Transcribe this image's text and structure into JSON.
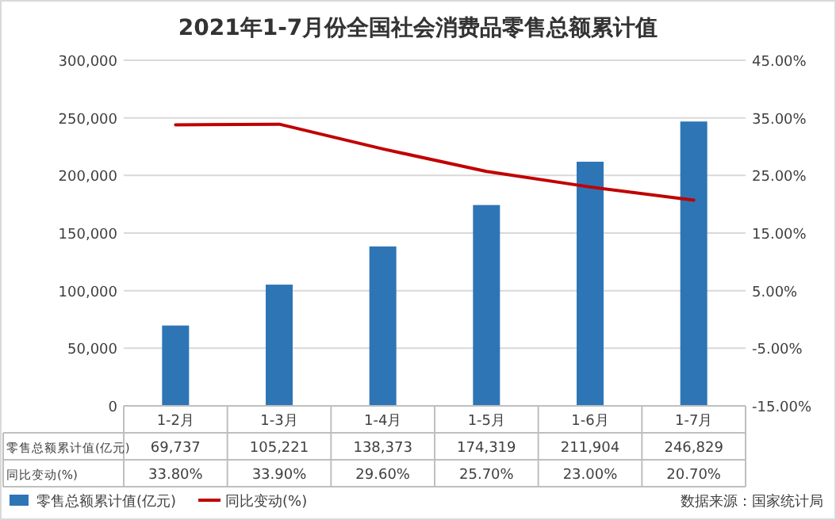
{
  "chart_data": {
    "type": "bar",
    "title": "2021年1-7月份全国社会消费品零售总额累计值",
    "categories": [
      "1-2月",
      "1-3月",
      "1-4月",
      "1-5月",
      "1-6月",
      "1-7月"
    ],
    "series": [
      {
        "name": "零售总额累计值(亿元)",
        "color": "#2e75b6",
        "values": [
          69737,
          105221,
          138373,
          174319,
          211904,
          246829
        ],
        "value_labels": [
          "69,737",
          "105,221",
          "138,373",
          "174,319",
          "211,904",
          "246,829"
        ]
      },
      {
        "name": "同比变动(%)",
        "type": "line",
        "axis": "y2",
        "color": "#c00000",
        "values": [
          33.8,
          33.9,
          29.6,
          25.7,
          23.0,
          20.7
        ],
        "value_labels": [
          "33.80%",
          "33.90%",
          "29.60%",
          "25.70%",
          "23.00%",
          "20.70%"
        ]
      }
    ],
    "ylim": [
      0,
      300000
    ],
    "yticks": [
      {
        "value": 0,
        "label": "0"
      },
      {
        "value": 50000,
        "label": "50,000"
      },
      {
        "value": 100000,
        "label": "100,000"
      },
      {
        "value": 150000,
        "label": "150,000"
      },
      {
        "value": 200000,
        "label": "200,000"
      },
      {
        "value": 250000,
        "label": "250,000"
      },
      {
        "value": 300000,
        "label": "300,000"
      }
    ],
    "y2lim": [
      -15,
      45
    ],
    "y2ticks": [
      {
        "value": -15,
        "label": "-15.00%"
      },
      {
        "value": -5,
        "label": "-5.00%"
      },
      {
        "value": 5,
        "label": "5.00%"
      },
      {
        "value": 15,
        "label": "15.00%"
      },
      {
        "value": 25,
        "label": "25.00%"
      },
      {
        "value": 35,
        "label": "35.00%"
      },
      {
        "value": 45,
        "label": "45.00%"
      }
    ],
    "grid": "y",
    "legend": "bottom left",
    "marker": "none",
    "line_style": "solid",
    "annotations": [
      "数据来源：国家统计局"
    ]
  }
}
